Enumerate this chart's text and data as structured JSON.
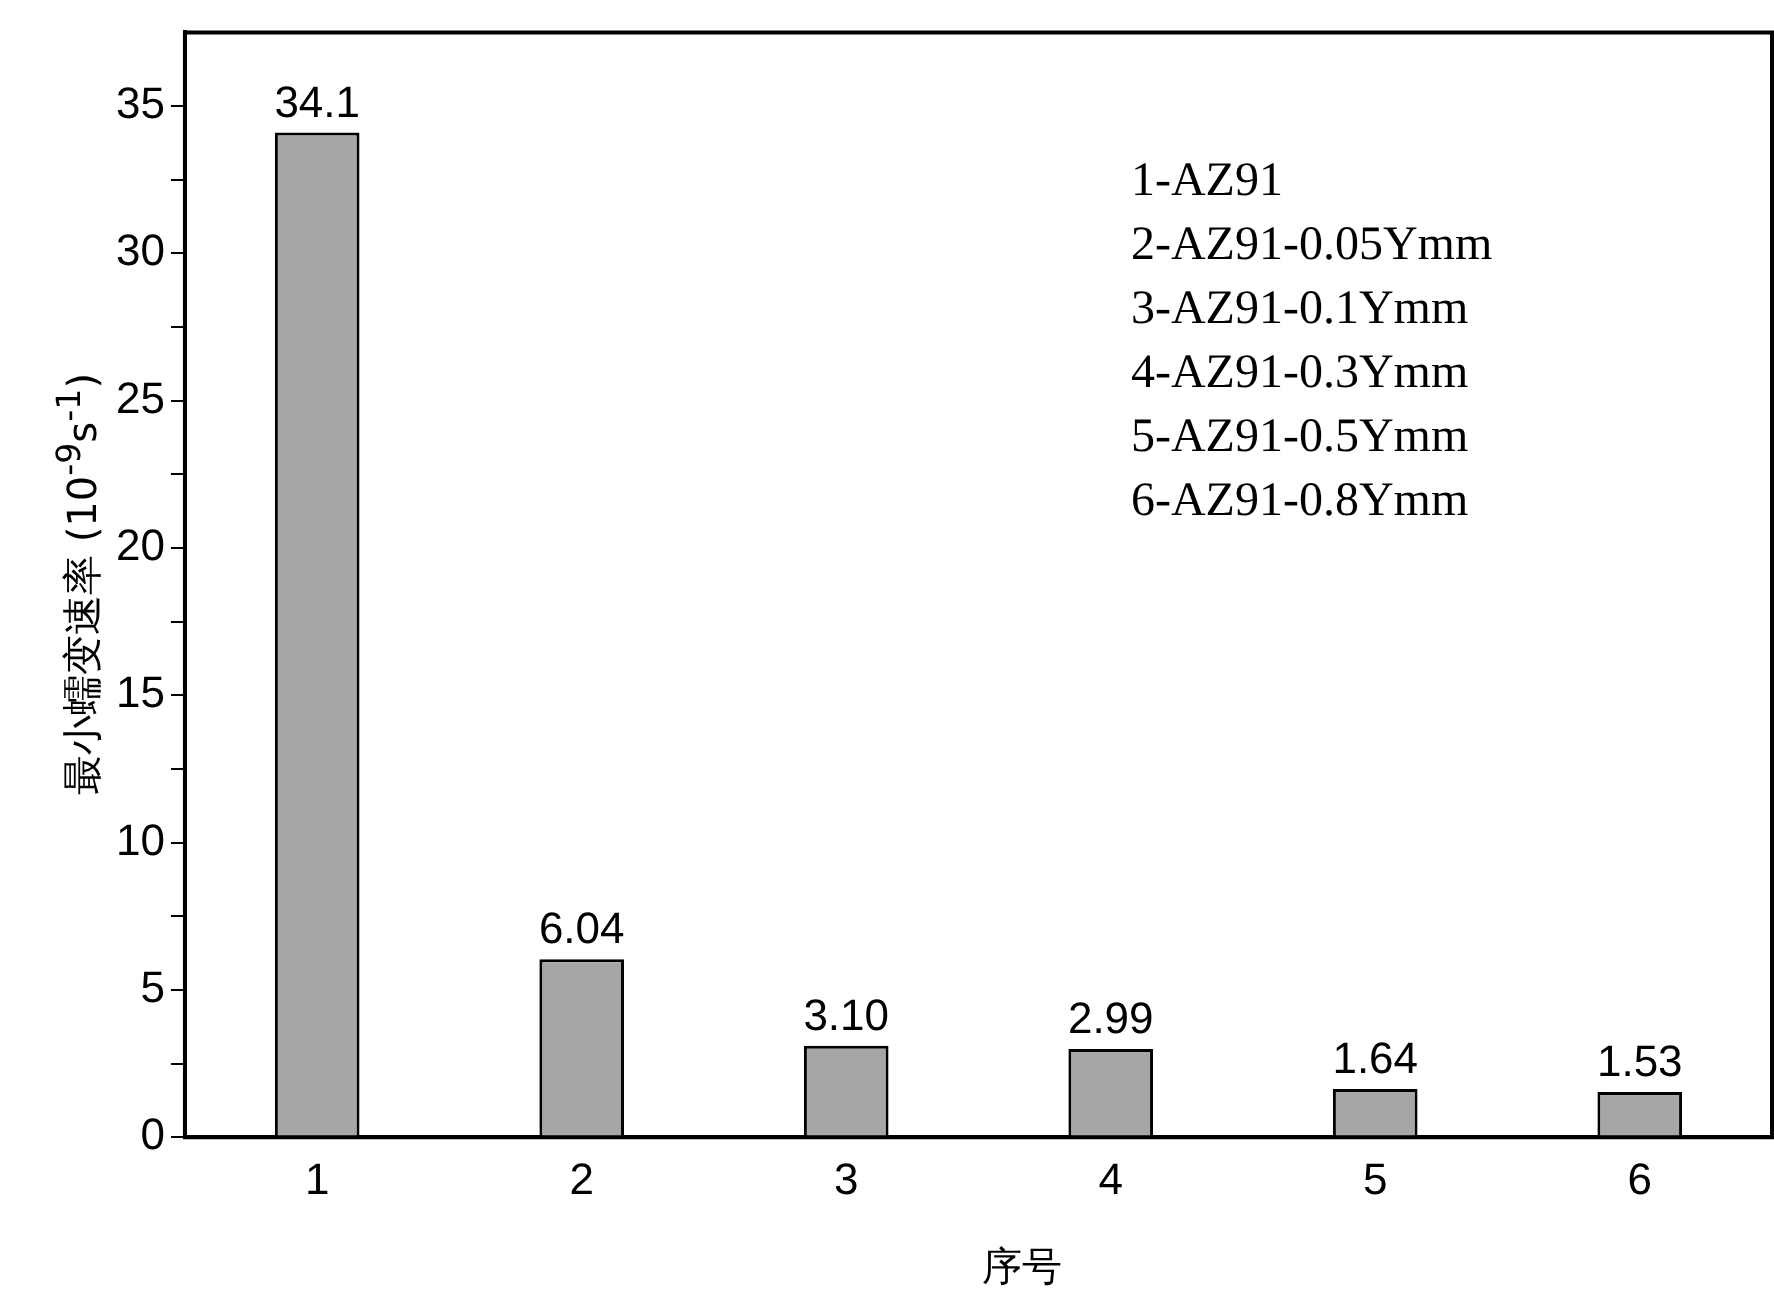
{
  "chart_data": {
    "type": "bar",
    "xlabel": "序号",
    "ylabel": "最小蠕变速率 (10$^{-9}$s$^{-1}$)",
    "categories": [
      "1",
      "2",
      "3",
      "4",
      "5",
      "6"
    ],
    "values": [
      34.1,
      6.04,
      3.1,
      2.99,
      1.64,
      1.53
    ],
    "value_labels": [
      "34.1",
      "6.04",
      "3.10",
      "2.99",
      "1.64",
      "1.53"
    ],
    "color": "#a6a6a6",
    "ylim": [
      0,
      37.5
    ],
    "yticks": [
      0,
      {
        "value": 2.5,
        "label": null
      },
      5,
      {
        "value": 7.5,
        "label": null
      },
      10,
      {
        "value": 12.5,
        "label": null
      },
      15,
      {
        "value": 17.5,
        "label": null
      },
      20,
      {
        "value": 22.5,
        "label": null
      },
      25,
      {
        "value": 27.5,
        "label": null
      },
      30,
      {
        "value": 32.5,
        "label": null
      },
      35
    ],
    "grid": false,
    "legend": false,
    "annotations": [
      "1-AZ91",
      "2-AZ91-0.05Ymm",
      "3-AZ91-0.1Ymm",
      "4-AZ91-0.3Ymm",
      "5-AZ91-0.5Ymm",
      "6-AZ91-0.8Ymm"
    ]
  }
}
